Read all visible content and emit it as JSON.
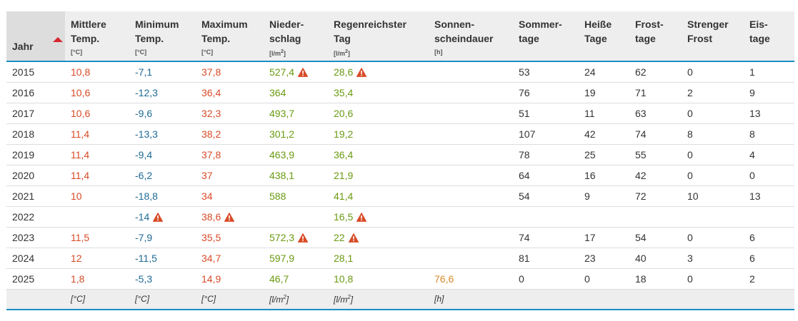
{
  "table": {
    "columns": [
      {
        "label": "Jahr",
        "unit": ""
      },
      {
        "label": "Mittlere Temp.",
        "unit": "[°C]"
      },
      {
        "label": "Minimum Temp.",
        "unit": "[°C]"
      },
      {
        "label": "Maximum Temp.",
        "unit": "[°C]"
      },
      {
        "label": "Nieder-schlag",
        "unit": "[l/m²]"
      },
      {
        "label": "Regenreichster Tag",
        "unit": "[l/m²]"
      },
      {
        "label": "Sonnen-scheindauer",
        "unit": "[h]"
      },
      {
        "label": "Sommer-tage",
        "unit": ""
      },
      {
        "label": "Heiße Tage",
        "unit": ""
      },
      {
        "label": "Frost-tage",
        "unit": ""
      },
      {
        "label": "Strenger Frost",
        "unit": ""
      },
      {
        "label": "Eis-tage",
        "unit": ""
      }
    ],
    "header_lines": [
      [
        "Jahr"
      ],
      [
        "Mittlere",
        "Temp."
      ],
      [
        "Minimum",
        "Temp."
      ],
      [
        "Maximum",
        "Temp."
      ],
      [
        "Nieder-",
        "schlag"
      ],
      [
        "Regenreichster",
        "Tag"
      ],
      [
        "Sonnen-",
        "scheindauer"
      ],
      [
        "Sommer-",
        "tage"
      ],
      [
        "Heiße",
        "Tage"
      ],
      [
        "Frost-",
        "tage"
      ],
      [
        "Strenger",
        "Frost"
      ],
      [
        "Eis-",
        "tage"
      ]
    ],
    "sort_column": "Jahr",
    "rows": [
      {
        "year": "2015",
        "mean": "10,8",
        "min": "-7,1",
        "max": "37,8",
        "precip": "527,4",
        "precip_warn": true,
        "wettest": "28,6",
        "wettest_warn": true,
        "sun": "",
        "summer": "53",
        "hot": "24",
        "frost": "62",
        "hard_frost": "0",
        "ice": "1"
      },
      {
        "year": "2016",
        "mean": "10,6",
        "min": "-12,3",
        "max": "36,4",
        "precip": "364",
        "wettest": "35,4",
        "sun": "",
        "summer": "76",
        "hot": "19",
        "frost": "71",
        "hard_frost": "2",
        "ice": "9"
      },
      {
        "year": "2017",
        "mean": "10,6",
        "min": "-9,6",
        "max": "32,3",
        "precip": "493,7",
        "wettest": "20,6",
        "sun": "",
        "summer": "51",
        "hot": "11",
        "frost": "63",
        "hard_frost": "0",
        "ice": "13"
      },
      {
        "year": "2018",
        "mean": "11,4",
        "min": "-13,3",
        "max": "38,2",
        "precip": "301,2",
        "wettest": "19,2",
        "sun": "",
        "summer": "107",
        "hot": "42",
        "frost": "74",
        "hard_frost": "8",
        "ice": "8"
      },
      {
        "year": "2019",
        "mean": "11,4",
        "min": "-9,4",
        "max": "37,8",
        "precip": "463,9",
        "wettest": "36,4",
        "sun": "",
        "summer": "78",
        "hot": "25",
        "frost": "55",
        "hard_frost": "0",
        "ice": "4"
      },
      {
        "year": "2020",
        "mean": "11,4",
        "min": "-6,2",
        "max": "37",
        "precip": "438,1",
        "wettest": "21,9",
        "sun": "",
        "summer": "64",
        "hot": "16",
        "frost": "42",
        "hard_frost": "0",
        "ice": "0"
      },
      {
        "year": "2021",
        "mean": "10",
        "min": "-18,8",
        "max": "34",
        "precip": "588",
        "wettest": "41,4",
        "sun": "",
        "summer": "54",
        "hot": "9",
        "frost": "72",
        "hard_frost": "10",
        "ice": "13"
      },
      {
        "year": "2022",
        "mean": "",
        "min": "-14",
        "min_warn": true,
        "max": "38,6",
        "max_warn": true,
        "precip": "",
        "wettest": "16,5",
        "wettest_warn": true,
        "sun": "",
        "summer": "",
        "hot": "",
        "frost": "",
        "hard_frost": "",
        "ice": ""
      },
      {
        "year": "2023",
        "mean": "11,5",
        "min": "-7,9",
        "max": "35,5",
        "precip": "572,3",
        "precip_warn": true,
        "wettest": "22",
        "wettest_warn": true,
        "sun": "",
        "summer": "74",
        "hot": "17",
        "frost": "54",
        "hard_frost": "0",
        "ice": "6"
      },
      {
        "year": "2024",
        "mean": "12",
        "min": "-11,5",
        "max": "34,7",
        "precip": "597,9",
        "wettest": "28,1",
        "sun": "",
        "summer": "81",
        "hot": "23",
        "frost": "40",
        "hard_frost": "3",
        "ice": "6"
      },
      {
        "year": "2025",
        "mean": "1,8",
        "min": "-5,3",
        "max": "14,9",
        "precip": "46,7",
        "wettest": "10,8",
        "sun": "76,6",
        "summer": "0",
        "hot": "0",
        "frost": "18",
        "hard_frost": "0",
        "ice": "2"
      }
    ],
    "footer_units": [
      "",
      "[°C]",
      "[°C]",
      "[°C]",
      "[l/m²]",
      "[l/m²]",
      "[h]",
      "",
      "",
      "",
      "",
      ""
    ]
  },
  "colors": {
    "temperature_mean": "#d84b27",
    "temperature_min": "#1f6a95",
    "temperature_max": "#d84b27",
    "precipitation": "#6a9a12",
    "sunshine": "#d98a2b",
    "warning": "#d84b27",
    "accent_border": "#1a8fc9",
    "sort_arrow": "#d8262d"
  },
  "icons": {
    "warning": "warning-triangle-icon",
    "sort": "sort-ascending-icon"
  }
}
